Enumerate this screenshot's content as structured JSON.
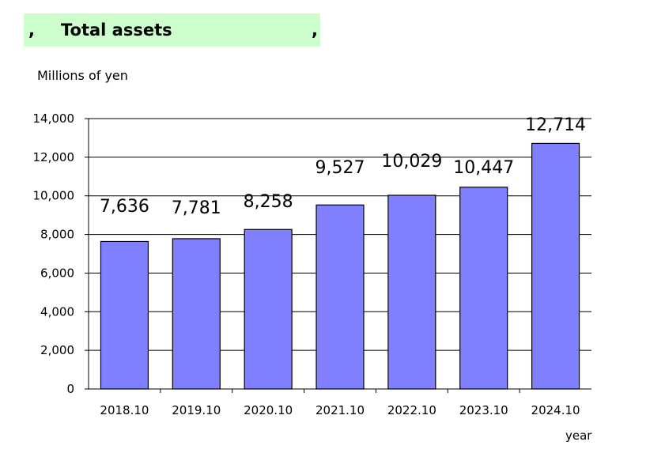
{
  "banner": {
    "mark_left": ",",
    "title": "Total assets",
    "mark_right": ",",
    "color": "#ccffcc"
  },
  "chart_data": {
    "type": "bar",
    "title": "Total assets",
    "ylabel": "Millions of yen",
    "xlabel": "year",
    "categories": [
      "2018.10",
      "2019.10",
      "2020.10",
      "2021.10",
      "2022.10",
      "2023.10",
      "2024.10"
    ],
    "values": [
      7636,
      7781,
      8258,
      9527,
      10029,
      10447,
      12714
    ],
    "data_labels": [
      "7,636",
      "7,781",
      "8,258",
      "9,527",
      "10,029",
      "10,447",
      "12,714"
    ],
    "ylim": [
      0,
      14000
    ],
    "yticks": [
      0,
      2000,
      4000,
      6000,
      8000,
      10000,
      12000,
      14000
    ],
    "ytick_labels": [
      "0",
      "2,000",
      "4,000",
      "6,000",
      "8,000",
      "10,000",
      "12,000",
      "14,000"
    ],
    "grid": true,
    "legend": "none",
    "bar_color": "#8080ff"
  }
}
